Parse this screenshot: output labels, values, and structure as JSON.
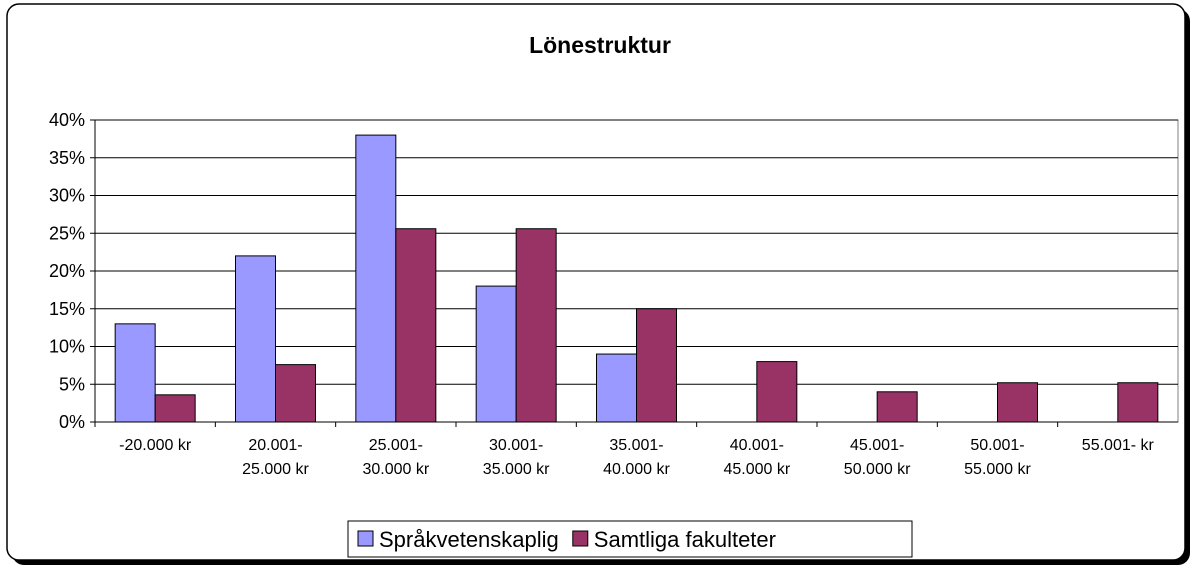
{
  "chart_data": {
    "type": "bar",
    "title": "Lönestruktur",
    "categories": [
      "-20.000 kr",
      "20.001-\n25.000 kr",
      "25.001-\n30.000 kr",
      "30.001-\n35.000 kr",
      "35.001-\n40.000 kr",
      "40.001-\n45.000 kr",
      "45.001-\n50.000 kr",
      "50.001-\n55.000 kr",
      "55.001- kr"
    ],
    "series": [
      {
        "name": "Språkvetenskaplig",
        "color": "#9999ff",
        "values": [
          13,
          22,
          38,
          18,
          9,
          0,
          0,
          0,
          0
        ]
      },
      {
        "name": "Samtliga fakulteter",
        "color": "#993366",
        "values": [
          3.6,
          7.6,
          25.6,
          25.6,
          15,
          8,
          4,
          5.2,
          5.2
        ]
      }
    ],
    "ylim": [
      0,
      40
    ],
    "yticks": [
      {
        "value": 0,
        "label": "0%"
      },
      {
        "value": 5,
        "label": "5%"
      },
      {
        "value": 10,
        "label": "10%"
      },
      {
        "value": 15,
        "label": "15%"
      },
      {
        "value": 20,
        "label": "20%"
      },
      {
        "value": 25,
        "label": "25%"
      },
      {
        "value": 30,
        "label": "30%"
      },
      {
        "value": 35,
        "label": "35%"
      },
      {
        "value": 40,
        "label": "40%"
      }
    ],
    "grid": true,
    "legend": "bottom"
  }
}
